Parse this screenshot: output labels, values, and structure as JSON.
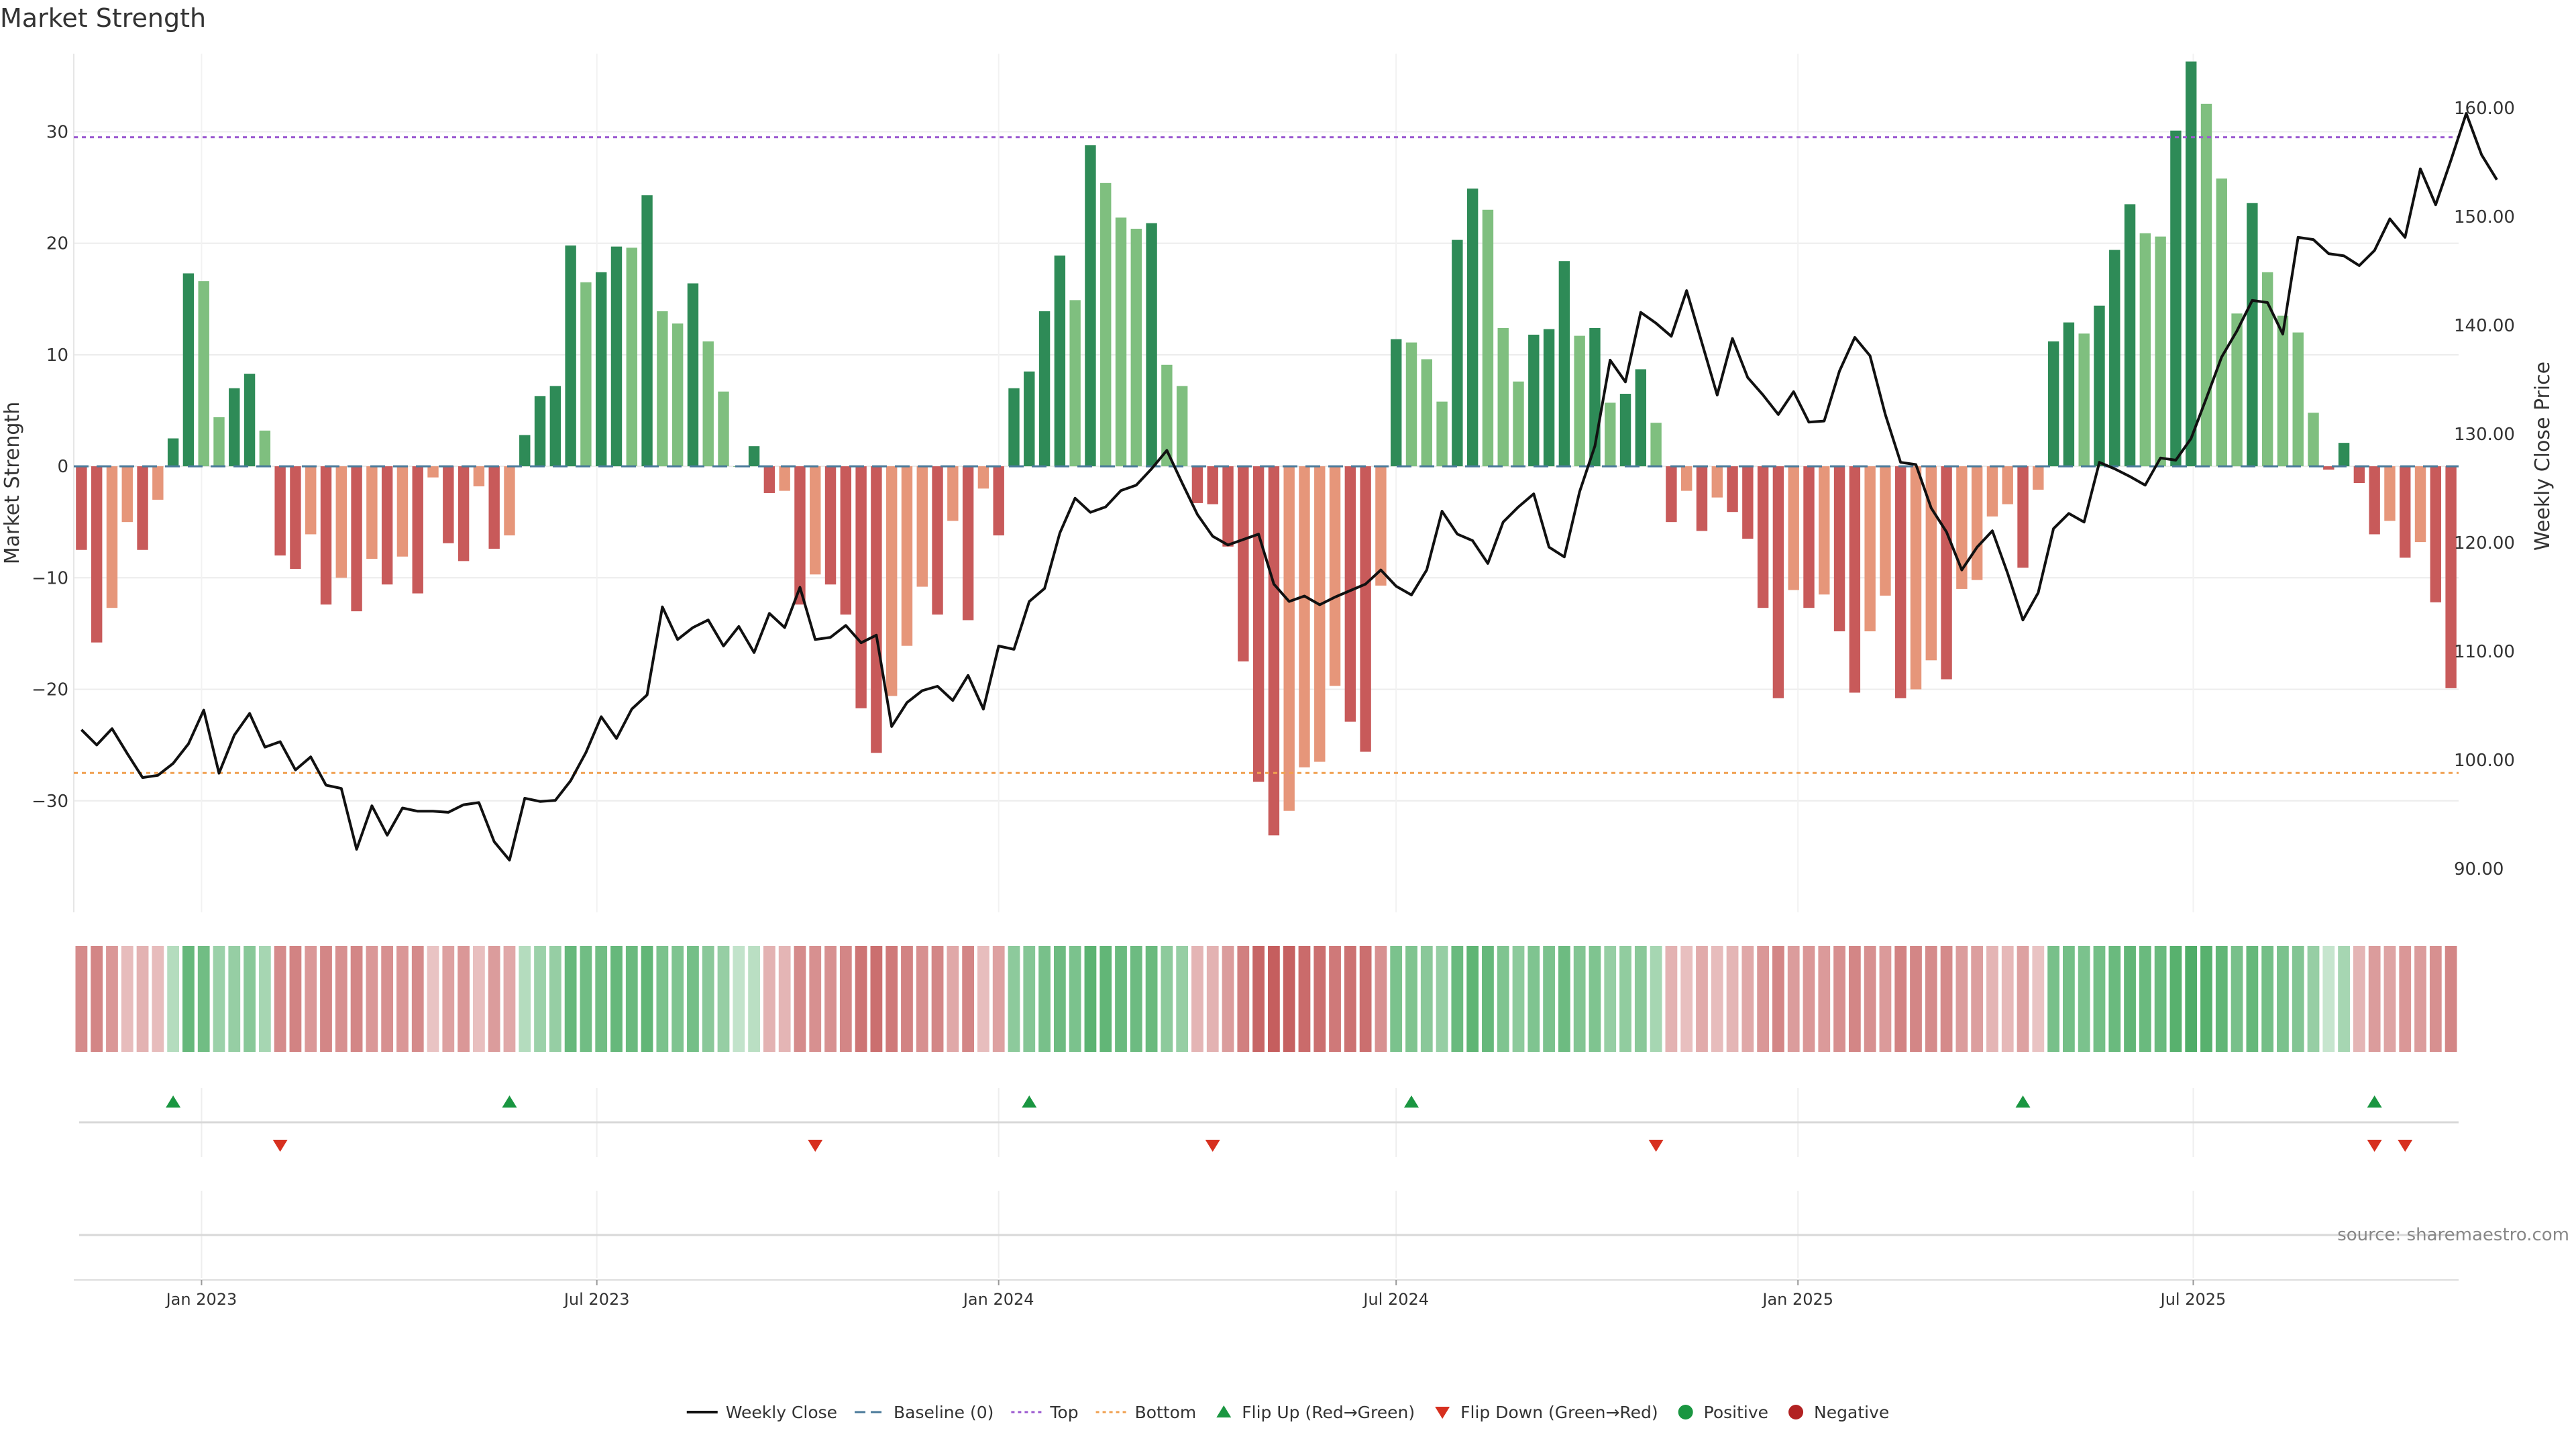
{
  "chart_data": {
    "type": "bar",
    "title": "Market Strength",
    "ylabel": "Market Strength",
    "y2label": "Weekly Close Price",
    "ylim": [
      -40,
      37
    ],
    "y2lim": [
      86,
      165
    ],
    "yticks": [
      30,
      20,
      10,
      0,
      -10,
      -20,
      -30
    ],
    "yticks_labels": [
      "30",
      "20",
      "10",
      "0",
      "−10",
      "−20",
      "−30"
    ],
    "y2ticks": [
      160,
      150,
      140,
      130,
      120,
      110,
      100,
      90
    ],
    "y2ticks_labels": [
      "160.00",
      "150.00",
      "140.00",
      "130.00",
      "120.00",
      "110.00",
      "100.00",
      "90.00"
    ],
    "x_start": "2022-11-07",
    "x_step_days": 7,
    "xticks": [
      {
        "date": "2023-01-01",
        "label": "Jan 2023"
      },
      {
        "date": "2023-07-01",
        "label": "Jul 2023"
      },
      {
        "date": "2024-01-01",
        "label": "Jan 2024"
      },
      {
        "date": "2024-07-01",
        "label": "Jul 2024"
      },
      {
        "date": "2025-01-01",
        "label": "Jan 2025"
      },
      {
        "date": "2025-07-01",
        "label": "Jul 2025"
      }
    ],
    "top_line": 29.5,
    "bottom_line": -27.5,
    "grid": true,
    "legend_position": "bottom-center",
    "strength": [
      -7.5,
      -15.8,
      -12.7,
      -5,
      -7.5,
      -3,
      2.5,
      17.3,
      16.6,
      4.4,
      7,
      8.3,
      3.2,
      -8,
      -9.2,
      -6.1,
      -12.4,
      -10,
      -13,
      -8.3,
      -10.6,
      -8.1,
      -11.4,
      -1,
      -6.9,
      -8.5,
      -1.8,
      -7.4,
      -6.2,
      2.8,
      6.3,
      7.2,
      19.8,
      16.5,
      17.4,
      19.7,
      19.6,
      24.3,
      13.9,
      12.8,
      16.4,
      11.2,
      6.7,
      0,
      1.8,
      -2.4,
      -2.2,
      -12.4,
      -9.7,
      -10.6,
      -13.3,
      -21.7,
      -25.7,
      -20.6,
      -16.1,
      -10.8,
      -13.3,
      -4.9,
      -13.8,
      -2,
      -6.2,
      7,
      8.5,
      13.9,
      18.9,
      14.9,
      28.8,
      25.4,
      22.3,
      21.3,
      21.8,
      9.1,
      7.2,
      -3.3,
      -3.4,
      -7.2,
      -17.5,
      -28.3,
      -33.1,
      -30.9,
      -27,
      -26.5,
      -19.7,
      -22.9,
      -25.6,
      -10.7,
      11.4,
      11.1,
      9.6,
      5.8,
      20.3,
      24.9,
      23,
      12.4,
      7.6,
      11.8,
      12.3,
      18.4,
      11.7,
      12.4,
      5.7,
      6.5,
      8.7,
      3.9,
      -5,
      -2.2,
      -5.8,
      -2.8,
      -4.1,
      -6.5,
      -12.7,
      -20.8,
      -11.1,
      -12.7,
      -11.5,
      -14.8,
      -20.3,
      -14.8,
      -11.6,
      -20.8,
      -20,
      -17.4,
      -19.1,
      -11,
      -10.2,
      -4.5,
      -3.4,
      -9.1,
      -2.1,
      11.2,
      12.9,
      11.9,
      14.4,
      19.4,
      23.5,
      20.9,
      20.6,
      30.1,
      36.3,
      32.5,
      25.8,
      13.7,
      23.6,
      17.4,
      13.5,
      12,
      4.8,
      -0.3,
      2.1,
      -1.5,
      -6.1,
      -4.9,
      -8.2,
      -6.8,
      -12.2,
      -19.9
    ],
    "close": [
      102.8,
      101.4,
      102.9,
      100.6,
      98.4,
      98.6,
      99.7,
      101.5,
      104.6,
      98.8,
      102.3,
      104.3,
      101.2,
      101.7,
      99.1,
      100.3,
      97.7,
      97.4,
      91.8,
      95.8,
      93.1,
      95.6,
      95.3,
      95.3,
      95.2,
      95.9,
      96.1,
      92.5,
      90.8,
      96.5,
      96.2,
      96.3,
      98.1,
      100.7,
      104,
      102,
      104.7,
      106,
      114.1,
      111.1,
      112.2,
      112.9,
      110.5,
      112.3,
      109.9,
      113.5,
      112.2,
      115.9,
      111.1,
      111.3,
      112.4,
      110.8,
      111.5,
      103.1,
      105.3,
      106.4,
      106.8,
      105.5,
      107.8,
      104.7,
      110.5,
      110.2,
      114.6,
      115.8,
      120.9,
      124.1,
      122.8,
      123.3,
      124.8,
      125.3,
      126.8,
      128.5,
      125.5,
      122.6,
      120.6,
      119.8,
      120.3,
      120.8,
      116.2,
      114.6,
      115.1,
      114.3,
      115,
      115.6,
      116.2,
      117.5,
      116,
      115.2,
      117.5,
      122.9,
      120.8,
      120.2,
      118.1,
      121.9,
      123.3,
      124.5,
      119.6,
      118.7,
      124.7,
      128.9,
      136.8,
      134.8,
      141.2,
      140.2,
      139,
      143.2,
      138.4,
      133.6,
      138.8,
      135.2,
      133.6,
      131.8,
      133.9,
      131.1,
      131.2,
      135.8,
      138.9,
      137.2,
      131.8,
      127.4,
      127.2,
      123.2,
      121,
      117.5,
      119.6,
      121.1,
      117.2,
      112.9,
      115.4,
      121.3,
      122.7,
      121.9,
      127.4,
      126.8,
      126.1,
      125.3,
      127.8,
      127.6,
      129.6,
      133.3,
      137.1,
      139.5,
      142.3,
      142.1,
      139.2,
      148.1,
      147.9,
      146.6,
      146.4,
      145.5,
      146.9,
      149.8,
      148.1,
      154.4,
      151.1,
      155.2,
      159.5,
      155.7,
      153.4
    ],
    "blocks": [
      -0.55,
      -0.58,
      -0.48,
      -0.26,
      -0.32,
      -0.26,
      0.28,
      0.72,
      0.66,
      0.42,
      0.45,
      0.53,
      0.36,
      -0.55,
      -0.6,
      -0.48,
      -0.58,
      -0.52,
      -0.58,
      -0.48,
      -0.52,
      -0.48,
      -0.55,
      -0.22,
      -0.42,
      -0.48,
      -0.24,
      -0.45,
      -0.38,
      0.28,
      0.42,
      0.45,
      0.72,
      0.66,
      0.66,
      0.72,
      0.7,
      0.74,
      0.6,
      0.58,
      0.64,
      0.52,
      0.45,
      0.2,
      0.25,
      -0.32,
      -0.3,
      -0.55,
      -0.52,
      -0.52,
      -0.58,
      -0.68,
      -0.72,
      -0.66,
      -0.6,
      -0.52,
      -0.58,
      -0.38,
      -0.58,
      -0.25,
      -0.42,
      0.5,
      0.55,
      0.62,
      0.68,
      0.6,
      0.78,
      0.74,
      0.7,
      0.68,
      0.7,
      0.5,
      0.45,
      -0.3,
      -0.32,
      -0.45,
      -0.62,
      -0.78,
      -0.82,
      -0.8,
      -0.74,
      -0.72,
      -0.66,
      -0.7,
      -0.72,
      -0.52,
      0.6,
      0.58,
      0.52,
      0.45,
      0.7,
      0.76,
      0.72,
      0.58,
      0.5,
      0.58,
      0.6,
      0.68,
      0.56,
      0.58,
      0.45,
      0.48,
      0.52,
      0.36,
      -0.32,
      -0.24,
      -0.36,
      -0.26,
      -0.3,
      -0.38,
      -0.48,
      -0.58,
      -0.45,
      -0.48,
      -0.46,
      -0.52,
      -0.58,
      -0.52,
      -0.46,
      -0.6,
      -0.58,
      -0.55,
      -0.56,
      -0.45,
      -0.44,
      -0.3,
      -0.28,
      -0.42,
      -0.22,
      0.62,
      0.64,
      0.6,
      0.64,
      0.7,
      0.74,
      0.7,
      0.7,
      0.8,
      0.85,
      0.8,
      0.74,
      0.62,
      0.72,
      0.64,
      0.6,
      0.56,
      0.45,
      0.18,
      0.36,
      -0.3,
      -0.45,
      -0.4,
      -0.48,
      -0.45,
      -0.52,
      -0.58
    ],
    "flip_up": [
      "2022-12-19",
      "2023-05-22",
      "2024-01-15",
      "2024-07-08",
      "2025-04-14",
      "2025-09-22"
    ],
    "flip_down": [
      "2023-02-06",
      "2023-10-09",
      "2024-04-08",
      "2024-10-28",
      "2025-09-22",
      "2025-10-06"
    ],
    "colors": {
      "strong_green": "#2e8b57",
      "light_green": "#7fbf7f",
      "strong_red": "#c85a5a",
      "light_red": "#e6967a",
      "top_line": "#9b59d0",
      "bottom_line": "#f0a050",
      "baseline": "#4a7a9a",
      "close_line": "#111111",
      "flip_up": "#1a9641",
      "flip_down": "#d7301f",
      "positive": "#1a9641",
      "negative": "#b22222"
    },
    "legend": [
      {
        "key": "close",
        "label": "Weekly Close"
      },
      {
        "key": "baseline",
        "label": "Baseline (0)"
      },
      {
        "key": "top",
        "label": "Top"
      },
      {
        "key": "bottom",
        "label": "Bottom"
      },
      {
        "key": "flip_up",
        "label": "Flip Up (Red→Green)"
      },
      {
        "key": "flip_down",
        "label": "Flip Down (Green→Red)"
      },
      {
        "key": "positive",
        "label": "Positive"
      },
      {
        "key": "negative",
        "label": "Negative"
      }
    ],
    "source": "source: sharemaestro.com"
  }
}
